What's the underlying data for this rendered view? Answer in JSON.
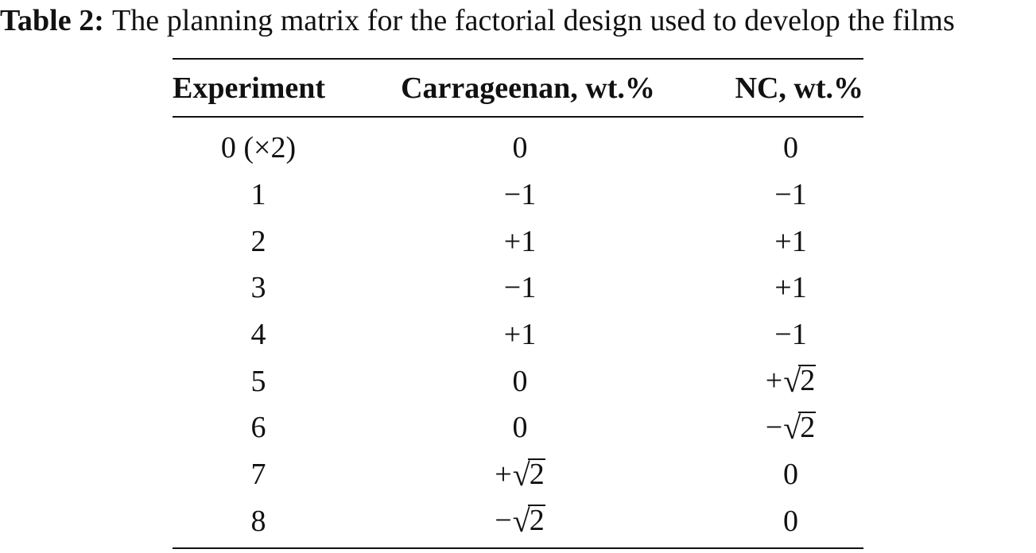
{
  "caption": {
    "label": "Table 2:",
    "text": "The planning matrix for the factorial design used to develop the films"
  },
  "table": {
    "headers": [
      "Experiment",
      "Carrageenan, wt.%",
      "NC, wt.%"
    ],
    "rows": [
      {
        "experiment": "0 (×2)",
        "carrageenan": {
          "sign": "",
          "value": "0",
          "sqrt": false
        },
        "nc": {
          "sign": "",
          "value": "0",
          "sqrt": false
        }
      },
      {
        "experiment": "1",
        "carrageenan": {
          "sign": "",
          "value": "−1",
          "sqrt": false
        },
        "nc": {
          "sign": "",
          "value": "−1",
          "sqrt": false
        }
      },
      {
        "experiment": "2",
        "carrageenan": {
          "sign": "",
          "value": "+1",
          "sqrt": false
        },
        "nc": {
          "sign": "",
          "value": "+1",
          "sqrt": false
        }
      },
      {
        "experiment": "3",
        "carrageenan": {
          "sign": "",
          "value": "−1",
          "sqrt": false
        },
        "nc": {
          "sign": "",
          "value": "+1",
          "sqrt": false
        }
      },
      {
        "experiment": "4",
        "carrageenan": {
          "sign": "",
          "value": "+1",
          "sqrt": false
        },
        "nc": {
          "sign": "",
          "value": "−1",
          "sqrt": false
        }
      },
      {
        "experiment": "5",
        "carrageenan": {
          "sign": "",
          "value": "0",
          "sqrt": false
        },
        "nc": {
          "sign": "+",
          "value": "2",
          "sqrt": true
        }
      },
      {
        "experiment": "6",
        "carrageenan": {
          "sign": "",
          "value": "0",
          "sqrt": false
        },
        "nc": {
          "sign": "−",
          "value": "2",
          "sqrt": true
        }
      },
      {
        "experiment": "7",
        "carrageenan": {
          "sign": "+",
          "value": "2",
          "sqrt": true
        },
        "nc": {
          "sign": "",
          "value": "0",
          "sqrt": false
        }
      },
      {
        "experiment": "8",
        "carrageenan": {
          "sign": "−",
          "value": "2",
          "sqrt": true
        },
        "nc": {
          "sign": "",
          "value": "0",
          "sqrt": false
        }
      }
    ]
  }
}
